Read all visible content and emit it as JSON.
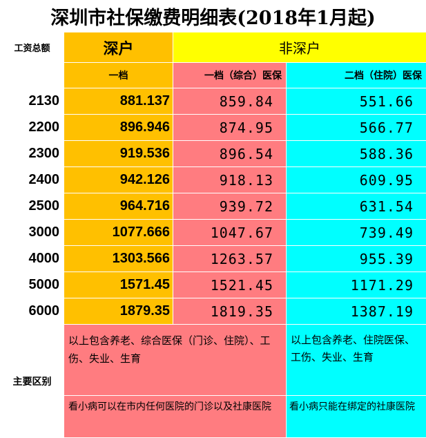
{
  "title": "深圳市社保缴费明细表(2018年1月起)",
  "headers": {
    "total_wage": "工资总额",
    "shenhu": "深户",
    "feishenhu": "非深户",
    "tier1": "一档",
    "tier1_combined": "一档（综合）医保",
    "tier2_inpatient": "二档（住院）医保"
  },
  "rows": [
    {
      "wage": "2130",
      "shenhu": "881.137",
      "tier1_combined": "859.84",
      "tier2_inpatient": "551.66"
    },
    {
      "wage": "2200",
      "shenhu": "896.946",
      "tier1_combined": "874.95",
      "tier2_inpatient": "566.77"
    },
    {
      "wage": "2300",
      "shenhu": "919.536",
      "tier1_combined": "896.54",
      "tier2_inpatient": "588.36"
    },
    {
      "wage": "2400",
      "shenhu": "942.126",
      "tier1_combined": "918.13",
      "tier2_inpatient": "609.95"
    },
    {
      "wage": "2500",
      "shenhu": "964.716",
      "tier1_combined": "939.72",
      "tier2_inpatient": "631.54"
    },
    {
      "wage": "3000",
      "shenhu": "1077.666",
      "tier1_combined": "1047.67",
      "tier2_inpatient": "739.49"
    },
    {
      "wage": "4000",
      "shenhu": "1303.566",
      "tier1_combined": "1263.57",
      "tier2_inpatient": "955.39"
    },
    {
      "wage": "5000",
      "shenhu": "1571.45",
      "tier1_combined": "1521.45",
      "tier2_inpatient": "1171.29"
    },
    {
      "wage": "6000",
      "shenhu": "1879.35",
      "tier1_combined": "1819.35",
      "tier2_inpatient": "1387.19"
    }
  ],
  "differences": {
    "label": "主要区别",
    "tier1_coverage": "以上包含养老、综合医保（门诊、住院）、工伤、失业、生育",
    "tier2_coverage": "以上包含养老、住院医保、工伤、失业、生育",
    "tier1_clinic": "看小病可以在市内任何医院的门诊以及社康医院",
    "tier2_clinic": "看小病只能在绑定的社康医院"
  },
  "colors": {
    "shenhu": "#ffc000",
    "feishenhu_header": "#ffff00",
    "tier1": "#ff7c80",
    "tier2": "#00ffff"
  }
}
